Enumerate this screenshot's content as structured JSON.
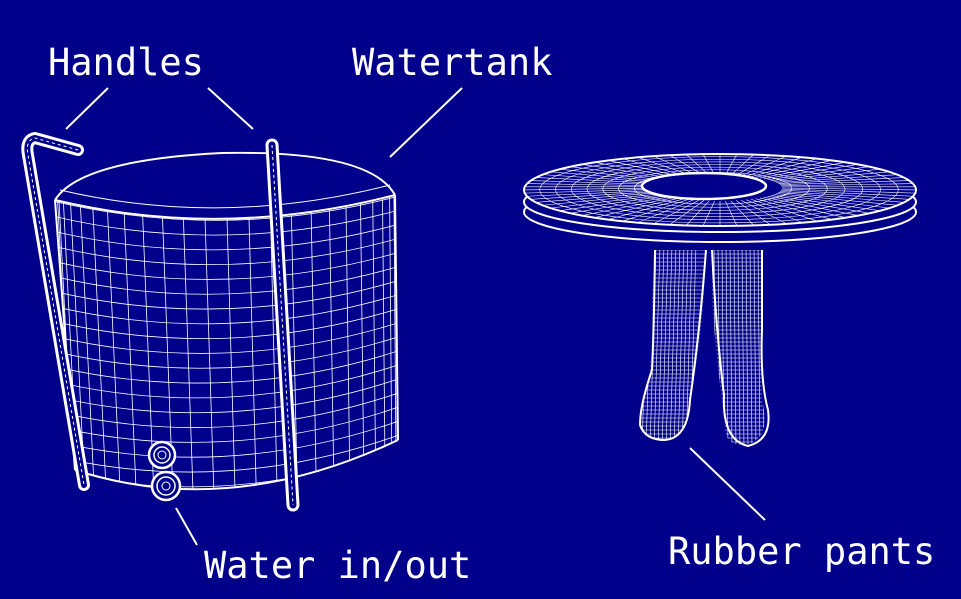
{
  "labels": {
    "handles": "Handles",
    "watertank": "Watertank",
    "water_in_out": "Water in/out",
    "rubber_pants": "Rubber pants"
  },
  "colors": {
    "background": "#00008b",
    "wireframe": "#ffffff"
  }
}
